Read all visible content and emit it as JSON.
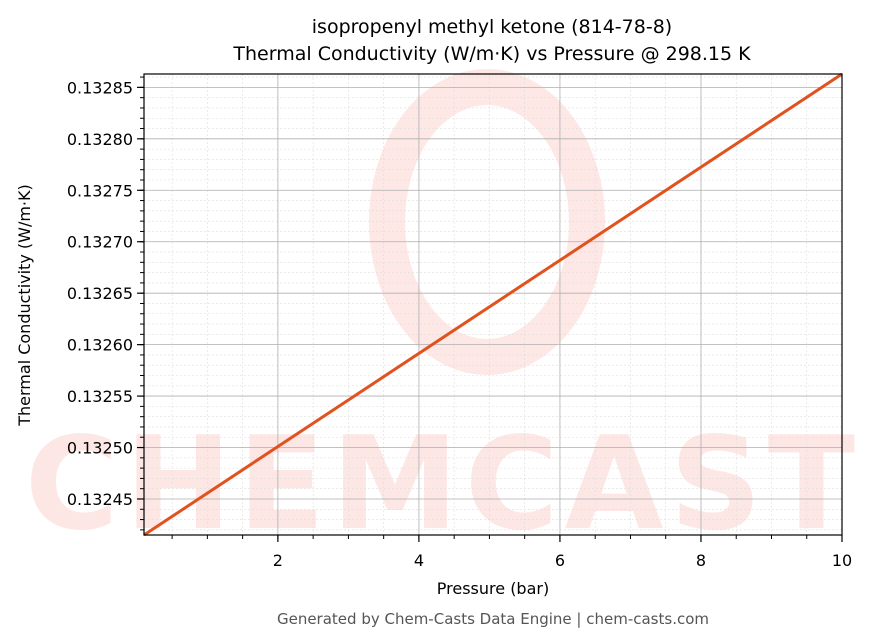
{
  "chart_data": {
    "type": "line",
    "title": "isopropenyl methyl ketone (814-78-8)",
    "subtitle": "Thermal Conductivity (W/m·K) vs Pressure @ 298.15 K",
    "xlabel": "Pressure (bar)",
    "ylabel": "Thermal Conductivity (W/m·K)",
    "xlim": [
      0.101325,
      10
    ],
    "ylim": [
      0.132415,
      0.132863
    ],
    "xticks": [
      2,
      4,
      6,
      8,
      10
    ],
    "xtick_labels": [
      "2",
      "4",
      "6",
      "8",
      "10"
    ],
    "yticks": [
      0.13245,
      0.1325,
      0.13255,
      0.1326,
      0.13265,
      0.1327,
      0.13275,
      0.1328,
      0.13285
    ],
    "ytick_labels": [
      "0.13245",
      "0.13250",
      "0.13255",
      "0.13260",
      "0.13265",
      "0.13270",
      "0.13275",
      "0.13280",
      "0.13285"
    ],
    "grid": true,
    "series": [
      {
        "name": "Thermal Conductivity",
        "color": "#e0531f",
        "x": [
          0.101325,
          10
        ],
        "y": [
          0.132415,
          0.132863
        ]
      }
    ]
  },
  "watermark": "CHEMCASTS",
  "footer": "Generated by Chem-Casts Data Engine | chem-casts.com"
}
